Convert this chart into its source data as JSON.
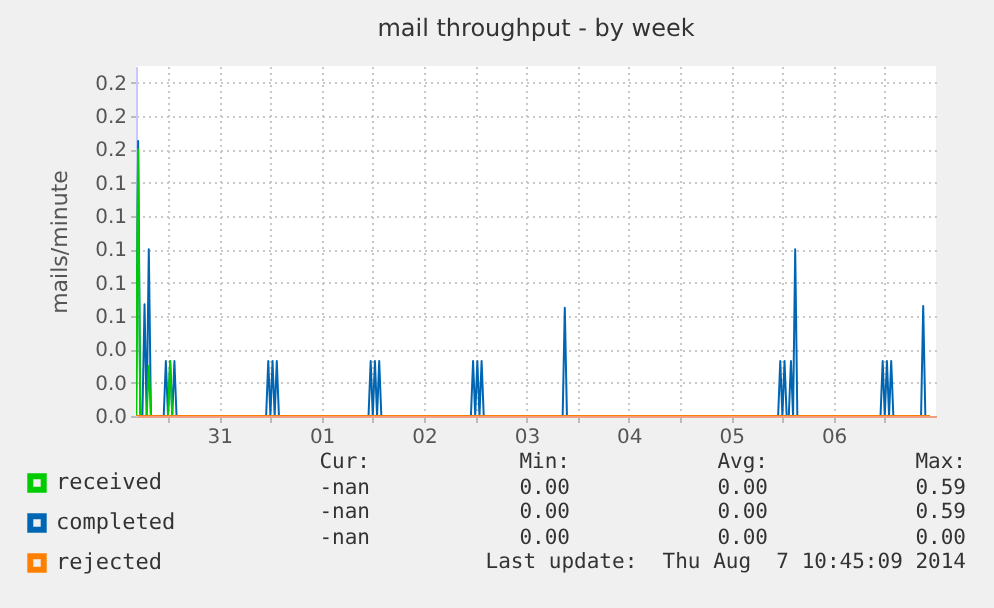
{
  "chart_data": {
    "type": "line",
    "title": "mail throughput - by week",
    "ylabel": "mails/minute",
    "xlim": [
      "2014-07-30T16:30",
      "2014-08-07T12:00"
    ],
    "xticks": [
      {
        "value": "2014-07-31T00:00",
        "label": null
      },
      {
        "value": "2014-07-31T12:00",
        "label": "31"
      },
      {
        "value": "2014-08-01T00:00",
        "label": null
      },
      {
        "value": "2014-08-01T12:00",
        "label": "01"
      },
      {
        "value": "2014-08-02T00:00",
        "label": null
      },
      {
        "value": "2014-08-02T12:00",
        "label": "02"
      },
      {
        "value": "2014-08-03T00:00",
        "label": null
      },
      {
        "value": "2014-08-03T12:00",
        "label": "03"
      },
      {
        "value": "2014-08-04T00:00",
        "label": null
      },
      {
        "value": "2014-08-04T12:00",
        "label": "04"
      },
      {
        "value": "2014-08-05T00:00",
        "label": null
      },
      {
        "value": "2014-08-05T12:00",
        "label": "05"
      },
      {
        "value": "2014-08-06T00:00",
        "label": null
      },
      {
        "value": "2014-08-06T12:00",
        "label": "06"
      },
      {
        "value": "2014-08-07T00:00",
        "label": null
      }
    ],
    "ylim": [
      0,
      0.21
    ],
    "yticks": [
      {
        "value": 0,
        "label": "0.0"
      },
      {
        "value": 0.02,
        "label": "0.0"
      },
      {
        "value": 0.04,
        "label": "0.0"
      },
      {
        "value": 0.06,
        "label": "0.1"
      },
      {
        "value": 0.08,
        "label": "0.1"
      },
      {
        "value": 0.1,
        "label": "0.1"
      },
      {
        "value": 0.12,
        "label": "0.1"
      },
      {
        "value": 0.14,
        "label": "0.1"
      },
      {
        "value": 0.16,
        "label": "0.2"
      },
      {
        "value": 0.18,
        "label": "0.2"
      },
      {
        "value": 0.2,
        "label": "0.2"
      }
    ],
    "grid": true,
    "legend": "bottom",
    "line_style": "solid",
    "series": [
      {
        "name": "received",
        "color": "#00cc00",
        "x": [
          "2014-07-30T16:30",
          "2014-07-30T17:00",
          "2014-07-30T17:30",
          "2014-07-30T19:00",
          "2014-07-30T19:30",
          "2014-07-30T20:00",
          "2014-07-31T00:00",
          "2014-07-31T00:30",
          "2014-07-31T01:00",
          "2014-08-07T10:30"
        ],
        "values": [
          0,
          0.16,
          0,
          0,
          0.03,
          0,
          0,
          0.033,
          0,
          0
        ]
      },
      {
        "name": "completed",
        "color": "#0066b3",
        "x": [
          "2014-07-30T16:30",
          "2014-07-30T17:00",
          "2014-07-30T17:30",
          "2014-07-30T18:00",
          "2014-07-30T18:30",
          "2014-07-30T19:00",
          "2014-07-30T19:30",
          "2014-07-30T20:00",
          "2014-07-30T23:00",
          "2014-07-30T23:30",
          "2014-07-31T00:00",
          "2014-07-31T00:30",
          "2014-07-31T01:00",
          "2014-07-31T01:30",
          "2014-07-31T02:00",
          "2014-07-31T23:00",
          "2014-07-31T23:30",
          "2014-08-01T00:00",
          "2014-08-01T00:30",
          "2014-08-01T01:00",
          "2014-08-01T01:30",
          "2014-08-01T02:00",
          "2014-08-01T23:00",
          "2014-08-01T23:30",
          "2014-08-02T00:00",
          "2014-08-02T00:30",
          "2014-08-02T01:00",
          "2014-08-02T01:30",
          "2014-08-02T02:00",
          "2014-08-02T23:00",
          "2014-08-02T23:30",
          "2014-08-03T00:00",
          "2014-08-03T00:30",
          "2014-08-03T01:00",
          "2014-08-03T01:30",
          "2014-08-03T02:00",
          "2014-08-03T20:30",
          "2014-08-03T21:00",
          "2014-08-03T21:30",
          "2014-08-05T23:00",
          "2014-08-05T23:30",
          "2014-08-06T00:00",
          "2014-08-06T00:30",
          "2014-08-06T01:00",
          "2014-08-06T01:30",
          "2014-08-06T02:00",
          "2014-08-06T02:30",
          "2014-08-06T03:00",
          "2014-08-06T03:30",
          "2014-08-06T23:00",
          "2014-08-06T23:30",
          "2014-08-07T00:00",
          "2014-08-07T00:30",
          "2014-08-07T01:00",
          "2014-08-07T01:30",
          "2014-08-07T02:00",
          "2014-08-07T08:30",
          "2014-08-07T09:00",
          "2014-08-07T09:30",
          "2014-08-07T10:30"
        ],
        "values": [
          0,
          0.165,
          0,
          0,
          0.067,
          0,
          0.1,
          0,
          0,
          0.033,
          0,
          0.033,
          0,
          0.033,
          0,
          0,
          0.033,
          0,
          0.033,
          0,
          0.033,
          0,
          0,
          0.033,
          0,
          0.033,
          0,
          0.033,
          0,
          0,
          0.033,
          0,
          0.033,
          0,
          0.033,
          0,
          0,
          0.065,
          0,
          0,
          0.033,
          0,
          0.033,
          0,
          0,
          0.033,
          0,
          0.1,
          0,
          0,
          0.033,
          0,
          0.033,
          0,
          0.033,
          0,
          0,
          0.066,
          0,
          0
        ]
      },
      {
        "name": "rejected",
        "color": "#ff8000",
        "x": [
          "2014-07-30T16:30",
          "2014-08-07T10:30"
        ],
        "values": [
          0,
          0
        ]
      }
    ],
    "annotations": [
      "Cur:",
      "Min:",
      "Avg:",
      "Max:",
      "-nan",
      "0.00",
      "0.00",
      "0.59",
      "-nan",
      "0.00",
      "0.00",
      "0.59",
      "-nan",
      "0.00",
      "0.00",
      "0.00",
      "Last update:  Thu Aug  7 10:45:09 2014"
    ]
  }
}
